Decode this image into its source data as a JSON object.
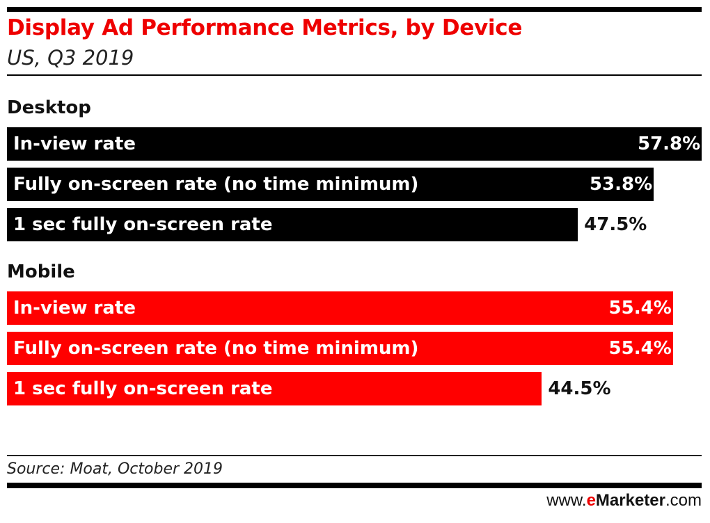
{
  "chart_data": {
    "type": "bar",
    "orientation": "horizontal",
    "title": "Display Ad Performance Metrics, by Device",
    "subtitle": "US, Q3 2019",
    "groups": [
      {
        "name": "Desktop",
        "color": "#000000",
        "categories": [
          "In-view rate",
          "Fully on-screen rate (no time minimum)",
          "1 sec fully on-screen rate"
        ],
        "values": [
          57.8,
          53.8,
          47.5
        ],
        "labels": [
          "57.8%",
          "53.8%",
          "47.5%"
        ]
      },
      {
        "name": "Mobile",
        "color": "#ff0000",
        "categories": [
          "In-view rate",
          "Fully on-screen rate (no time minimum)",
          "1 sec fully on-screen rate"
        ],
        "values": [
          55.4,
          55.4,
          44.5
        ],
        "labels": [
          "55.4%",
          "55.4%",
          "44.5%"
        ]
      }
    ],
    "xlim": [
      0,
      57.8
    ],
    "grid": false,
    "legend": "none"
  },
  "source": "Source: Moat, October 2019",
  "logo": {
    "pre": "www.",
    "e": "e",
    "brand": "Marketer",
    ".com": ".com",
    "accent": "#e00000"
  }
}
